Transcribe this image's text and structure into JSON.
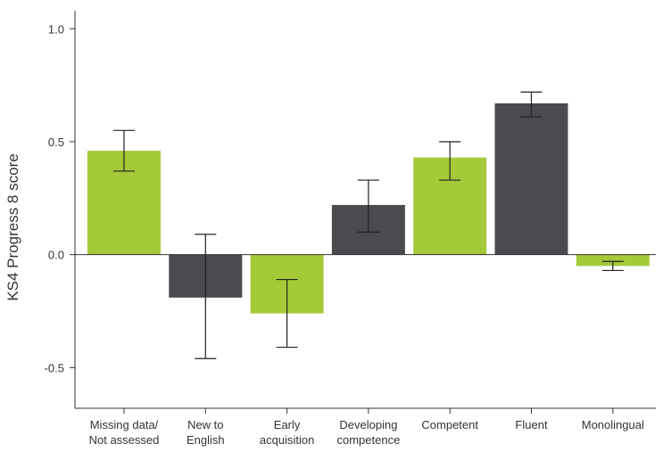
{
  "chart_data": {
    "type": "bar",
    "title": "",
    "xlabel": "",
    "ylabel": "KS4 Progress 8 score",
    "ylim": [
      -0.68,
      1.08
    ],
    "yticks": [
      {
        "value": 1.0,
        "label": "1.0"
      },
      {
        "value": 0.5,
        "label": "0.5"
      },
      {
        "value": 0.0,
        "label": "0.0"
      },
      {
        "value": -0.5,
        "label": "-0.5"
      }
    ],
    "grid": false,
    "legend": "none",
    "colors": {
      "green": "#a4ca3a",
      "gray": "#4a4b4f",
      "axis": "#333333"
    },
    "categories": [
      {
        "lines": [
          "Missing data/",
          "Not assessed"
        ],
        "color": "green"
      },
      {
        "lines": [
          "New to",
          "English"
        ],
        "color": "gray"
      },
      {
        "lines": [
          "Early",
          "acquisition"
        ],
        "color": "green"
      },
      {
        "lines": [
          "Developing",
          "competence"
        ],
        "color": "gray"
      },
      {
        "lines": [
          "Competent"
        ],
        "color": "green"
      },
      {
        "lines": [
          "Fluent"
        ],
        "color": "gray"
      },
      {
        "lines": [
          "Monolingual"
        ],
        "color": "green"
      }
    ],
    "values": [
      0.46,
      -0.19,
      -0.26,
      0.22,
      0.43,
      0.67,
      -0.05
    ],
    "error_bars": [
      {
        "low": 0.37,
        "high": 0.55
      },
      {
        "low": -0.46,
        "high": 0.09
      },
      {
        "low": -0.41,
        "high": -0.11
      },
      {
        "low": 0.1,
        "high": 0.33
      },
      {
        "low": 0.33,
        "high": 0.5
      },
      {
        "low": 0.61,
        "high": 0.72
      },
      {
        "low": -0.07,
        "high": -0.03
      }
    ]
  }
}
